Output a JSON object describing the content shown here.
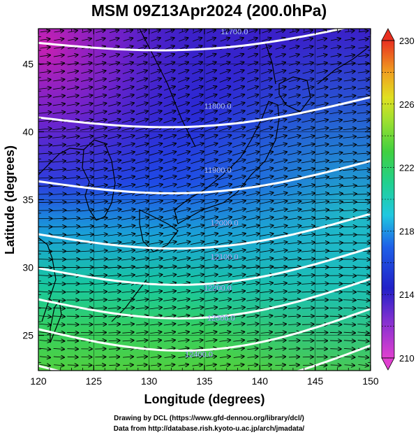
{
  "title": "MSM 09Z13Apr2024 (200.0hPa)",
  "x_axis": {
    "label": "Longitude (degrees)",
    "ticks": [
      120,
      125,
      130,
      135,
      140,
      145,
      150
    ],
    "range": [
      120,
      150
    ]
  },
  "y_axis": {
    "label": "Latitude  (degrees)",
    "ticks": [
      25,
      30,
      35,
      40,
      45
    ],
    "range": [
      22.4,
      47.6
    ]
  },
  "colorbar": {
    "min": 210,
    "max": 230,
    "labels": [
      210,
      214,
      218,
      222,
      226,
      230
    ]
  },
  "contours": [
    {
      "label": "11700.0",
      "lon": 137.7,
      "lat": 47.4
    },
    {
      "label": "11800.0",
      "lon": 136.2,
      "lat": 41.9
    },
    {
      "label": "11900.0",
      "lon": 136.2,
      "lat": 37.2
    },
    {
      "label": "12000.0",
      "lon": 136.8,
      "lat": 33.3
    },
    {
      "label": "12100.0",
      "lon": 136.8,
      "lat": 30.8
    },
    {
      "label": "12200.0",
      "lon": 136.2,
      "lat": 28.5
    },
    {
      "label": "12300.0",
      "lon": 136.5,
      "lat": 26.3
    },
    {
      "label": "12400.0",
      "lon": 134.5,
      "lat": 23.6
    }
  ],
  "credits": [
    "Drawing by DCL (https://www.gfd-dennou.org/library/dcl/)",
    "Data from http://database.rish.kyoto-u.ac.jp/arch/jmadata/"
  ]
}
